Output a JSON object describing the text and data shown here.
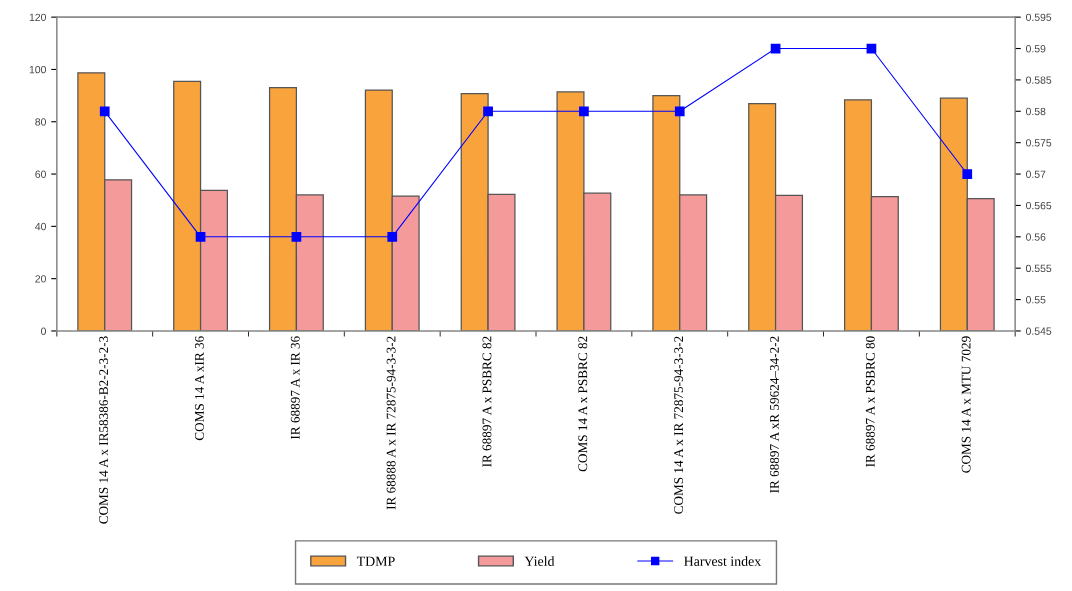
{
  "chart_data": {
    "type": "bar",
    "categories": [
      "COMS 14 A x IR58386-B2-2-3-2-3",
      "COMS 14 A xIR 36",
      "IR 68897 A x IR 36",
      "IR 68888 A x IR 72875-94-3-3-2",
      "IR 68897 A x PSBRC 82",
      "COMS 14 A x PSBRC 82",
      "COMS 14 A x IR 72875-94-3-3-2",
      "IR 68897 A xR 59624–34-2-2",
      "IR 68897 A x PSBRC 80",
      "COMS 14 A x MTU 7029"
    ],
    "series": [
      {
        "name": "TDMP",
        "color": "#f9a33c",
        "values": [
          98.7,
          95.4,
          93.0,
          92.1,
          90.8,
          91.4,
          90.0,
          86.9,
          88.4,
          89.0
        ]
      },
      {
        "name": "Yield",
        "color": "#f59a9a",
        "values": [
          57.8,
          53.8,
          52.0,
          51.6,
          52.2,
          52.7,
          52.0,
          51.8,
          51.4,
          50.6
        ]
      },
      {
        "name": "Harvest index",
        "color": "#0000ff",
        "type": "line",
        "axis": "y2",
        "marker": "square",
        "values": [
          0.58,
          0.56,
          0.56,
          0.56,
          0.58,
          0.58,
          0.58,
          0.59,
          0.59,
          0.57
        ]
      }
    ],
    "ylim": [
      0,
      120
    ],
    "yticks": [
      0,
      20,
      40,
      60,
      80,
      100,
      120
    ],
    "y2lim": [
      0.545,
      0.595
    ],
    "y2ticks": [
      0.545,
      0.55,
      0.555,
      0.56,
      0.565,
      0.57,
      0.575,
      0.58,
      0.585,
      0.59,
      0.595
    ],
    "legend": "bottom",
    "grid": false
  }
}
